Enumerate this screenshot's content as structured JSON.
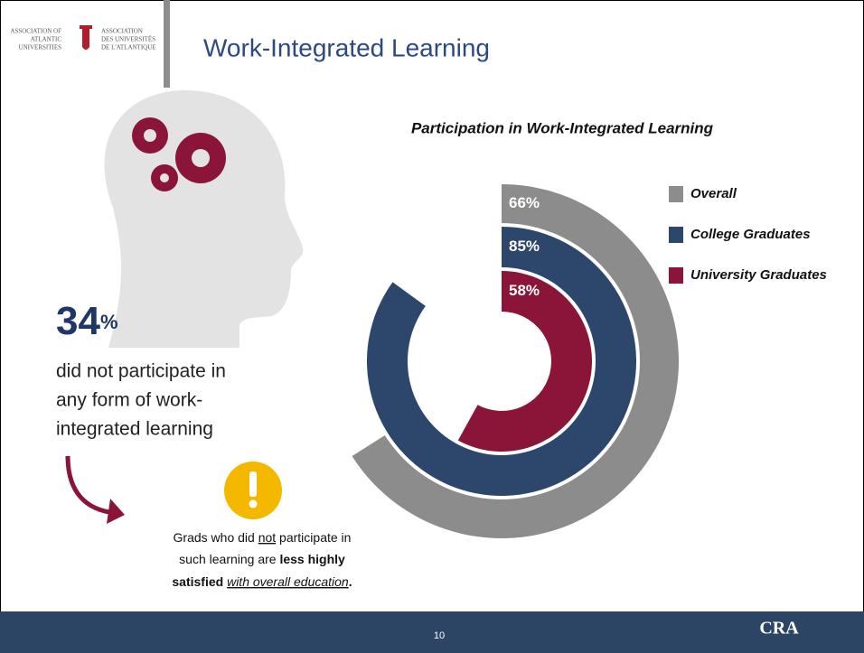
{
  "header": {
    "title": "Work-Integrated Learning",
    "logo_en": [
      "ASSOCIATION OF",
      "ATLANTIC",
      "UNIVERSITIES"
    ],
    "logo_fr": [
      "ASSOCIATION",
      "DES UNIVERSITÉS",
      "DE L'ATLANTIQUE"
    ]
  },
  "stat": {
    "number": "34",
    "unit": "%",
    "text": [
      "did not participate in",
      "any form of work-",
      "integrated learning"
    ]
  },
  "callout": {
    "lines": [
      [
        "Grads who did ",
        "not",
        " participate in"
      ],
      [
        "such learning are ",
        "less highly"
      ],
      [
        "satisfied ",
        "with overall education",
        "."
      ]
    ]
  },
  "footer": {
    "page": "10",
    "logo": "CRA"
  },
  "chart_data": {
    "type": "radial_bar",
    "title": "Participation in Work-Integrated Learning",
    "categories": [
      "Overall",
      "College Graduates",
      "University Graduates"
    ],
    "values": [
      66,
      85,
      58
    ],
    "value_labels": [
      "66%",
      "85%",
      "58%"
    ],
    "colors": [
      "#8c8c8c",
      "#2c476b",
      "#8b1538"
    ],
    "max": 100
  }
}
